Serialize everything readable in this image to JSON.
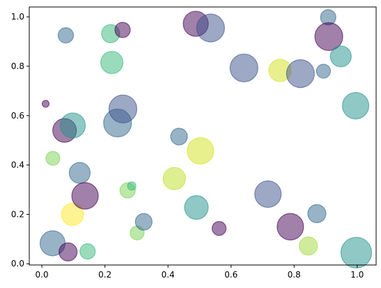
{
  "chart_data": {
    "type": "scatter",
    "title": "",
    "xlabel": "",
    "ylabel": "",
    "xlim": [
      -0.04,
      1.06
    ],
    "ylim": [
      -0.005,
      1.04
    ],
    "xticks": [
      0.0,
      0.2,
      0.4,
      0.6,
      0.8,
      1.0
    ],
    "yticks": [
      0.0,
      0.2,
      0.4,
      0.6,
      0.8,
      1.0
    ],
    "xtick_labels": [
      "0.0",
      "0.2",
      "0.4",
      "0.6",
      "0.8",
      "1.0"
    ],
    "ytick_labels": [
      "0.0",
      "0.2",
      "0.4",
      "0.6",
      "0.8",
      "1.0"
    ],
    "grid": false,
    "legend": "none",
    "alpha": 0.5,
    "colormap": "viridis",
    "points": [
      {
        "x": 0.012,
        "y": 0.648,
        "size": 5,
        "color": "#440154"
      },
      {
        "x": 0.035,
        "y": 0.427,
        "size": 10,
        "color": "#7ad151"
      },
      {
        "x": 0.034,
        "y": 0.083,
        "size": 18,
        "color": "#31688e"
      },
      {
        "x": 0.076,
        "y": 0.925,
        "size": 11,
        "color": "#31688e"
      },
      {
        "x": 0.072,
        "y": 0.54,
        "size": 17,
        "color": "#440154"
      },
      {
        "x": 0.098,
        "y": 0.56,
        "size": 18,
        "color": "#21918c"
      },
      {
        "x": 0.083,
        "y": 0.048,
        "size": 13,
        "color": "#440154"
      },
      {
        "x": 0.097,
        "y": 0.2,
        "size": 16,
        "color": "#fde725"
      },
      {
        "x": 0.12,
        "y": 0.368,
        "size": 15,
        "color": "#31688e"
      },
      {
        "x": 0.137,
        "y": 0.275,
        "size": 19,
        "color": "#440154"
      },
      {
        "x": 0.145,
        "y": 0.05,
        "size": 11,
        "color": "#35b779"
      },
      {
        "x": 0.218,
        "y": 0.932,
        "size": 13,
        "color": "#35b779"
      },
      {
        "x": 0.222,
        "y": 0.815,
        "size": 16,
        "color": "#35b779"
      },
      {
        "x": 0.24,
        "y": 0.57,
        "size": 20,
        "color": "#31688e"
      },
      {
        "x": 0.256,
        "y": 0.947,
        "size": 11,
        "color": "#440154"
      },
      {
        "x": 0.257,
        "y": 0.627,
        "size": 20,
        "color": "#3b528b"
      },
      {
        "x": 0.272,
        "y": 0.297,
        "size": 11,
        "color": "#7ad151"
      },
      {
        "x": 0.285,
        "y": 0.315,
        "size": 6,
        "color": "#35b779"
      },
      {
        "x": 0.302,
        "y": 0.125,
        "size": 10,
        "color": "#7ad151"
      },
      {
        "x": 0.323,
        "y": 0.17,
        "size": 12,
        "color": "#31688e"
      },
      {
        "x": 0.42,
        "y": 0.345,
        "size": 16,
        "color": "#bddf26"
      },
      {
        "x": 0.435,
        "y": 0.515,
        "size": 12,
        "color": "#31688e"
      },
      {
        "x": 0.488,
        "y": 0.972,
        "size": 18,
        "color": "#440154"
      },
      {
        "x": 0.49,
        "y": 0.228,
        "size": 17,
        "color": "#21918c"
      },
      {
        "x": 0.503,
        "y": 0.457,
        "size": 19,
        "color": "#d2e21b"
      },
      {
        "x": 0.535,
        "y": 0.955,
        "size": 20,
        "color": "#3b528b"
      },
      {
        "x": 0.562,
        "y": 0.143,
        "size": 10,
        "color": "#440154"
      },
      {
        "x": 0.641,
        "y": 0.793,
        "size": 20,
        "color": "#3b528b"
      },
      {
        "x": 0.717,
        "y": 0.282,
        "size": 19,
        "color": "#3b528b"
      },
      {
        "x": 0.755,
        "y": 0.783,
        "size": 16,
        "color": "#d2e21b"
      },
      {
        "x": 0.788,
        "y": 0.15,
        "size": 19,
        "color": "#440154"
      },
      {
        "x": 0.82,
        "y": 0.77,
        "size": 20,
        "color": "#3b528b"
      },
      {
        "x": 0.845,
        "y": 0.072,
        "size": 13,
        "color": "#a0da39"
      },
      {
        "x": 0.872,
        "y": 0.203,
        "size": 13,
        "color": "#31688e"
      },
      {
        "x": 0.893,
        "y": 0.78,
        "size": 10,
        "color": "#31688e"
      },
      {
        "x": 0.908,
        "y": 0.998,
        "size": 11,
        "color": "#31688e"
      },
      {
        "x": 0.91,
        "y": 0.92,
        "size": 20,
        "color": "#440154"
      },
      {
        "x": 0.948,
        "y": 0.84,
        "size": 15,
        "color": "#21918c"
      },
      {
        "x": 0.995,
        "y": 0.64,
        "size": 19,
        "color": "#21918c"
      },
      {
        "x": 0.997,
        "y": 0.045,
        "size": 22,
        "color": "#21918c"
      }
    ]
  }
}
